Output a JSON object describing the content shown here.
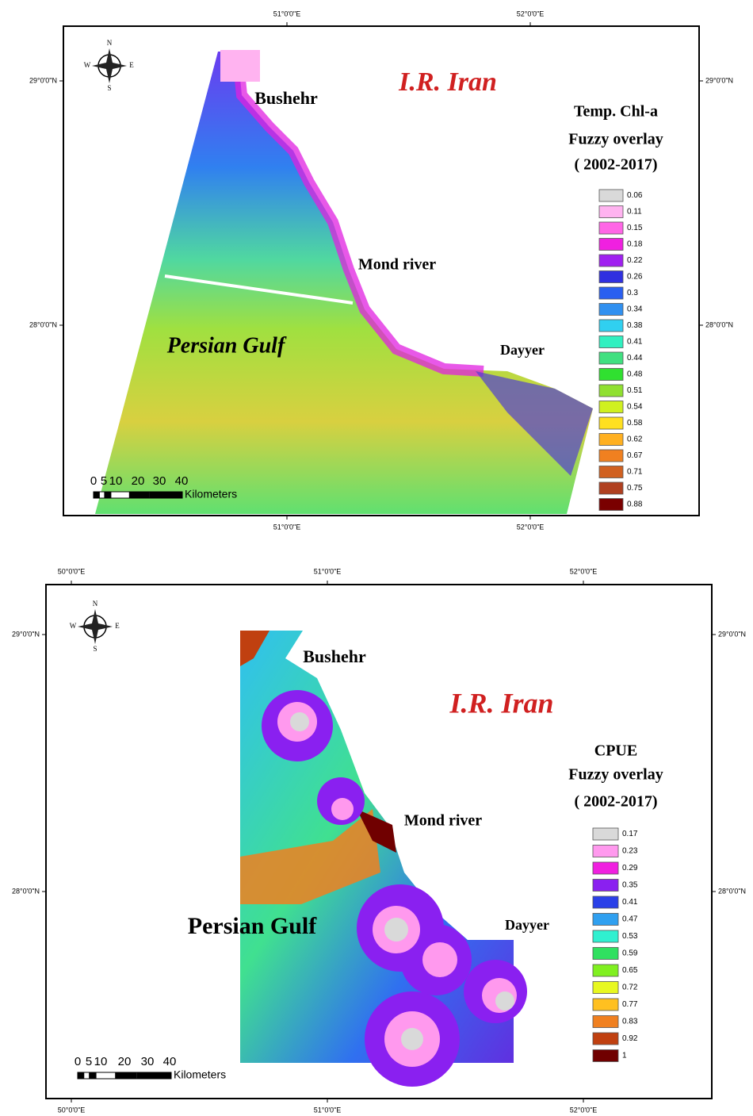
{
  "panels": [
    {
      "top_axis": [
        "51°0'0\"E",
        "52°0'0\"E"
      ],
      "bottom_axis": [
        "51°0'0\"E",
        "52°0'0\"E"
      ],
      "left_axis": [
        "29°0'0\"N",
        "28°0'0\"N"
      ],
      "right_axis": [
        "29°0'0\"N",
        "28°0'0\"N"
      ],
      "compass": {
        "n": "N",
        "s": "S",
        "e": "E",
        "w": "W"
      },
      "places": {
        "country": "I.R. Iran",
        "city": "Bushehr",
        "river": "Mond river",
        "town": "Dayyer",
        "sea": "Persian Gulf"
      },
      "legend": {
        "title": [
          "Temp. Chl-a",
          "Fuzzy overlay",
          "( 2002-2017)"
        ],
        "items": [
          {
            "label": "0.06",
            "color": "#d9d9d9"
          },
          {
            "label": "0.11",
            "color": "#ffb3f0"
          },
          {
            "label": "0.15",
            "color": "#ff66e6"
          },
          {
            "label": "0.18",
            "color": "#f020e0"
          },
          {
            "label": "0.22",
            "color": "#a020f0"
          },
          {
            "label": "0.26",
            "color": "#3030e0"
          },
          {
            "label": "0.3",
            "color": "#2a5ff0"
          },
          {
            "label": "0.34",
            "color": "#3090f0"
          },
          {
            "label": "0.38",
            "color": "#30d0f0"
          },
          {
            "label": "0.41",
            "color": "#30f0c0"
          },
          {
            "label": "0.44",
            "color": "#40e080"
          },
          {
            "label": "0.48",
            "color": "#30e030"
          },
          {
            "label": "0.51",
            "color": "#90e030"
          },
          {
            "label": "0.54",
            "color": "#d0f020"
          },
          {
            "label": "0.58",
            "color": "#ffe020"
          },
          {
            "label": "0.62",
            "color": "#ffb020"
          },
          {
            "label": "0.67",
            "color": "#f08020"
          },
          {
            "label": "0.71",
            "color": "#d06020"
          },
          {
            "label": "0.75",
            "color": "#b04020"
          },
          {
            "label": "0.88",
            "color": "#7a0000"
          }
        ]
      },
      "scale": {
        "ticks": [
          "0",
          "5",
          "10",
          "20",
          "30",
          "40"
        ],
        "unit": "Kilometers"
      }
    },
    {
      "top_axis": [
        "50°0'0\"E",
        "51°0'0\"E",
        "52°0'0\"E"
      ],
      "bottom_axis": [
        "50°0'0\"E",
        "51°0'0\"E",
        "52°0'0\"E"
      ],
      "left_axis": [
        "29°0'0\"N",
        "28°0'0\"N"
      ],
      "right_axis": [
        "29°0'0\"N",
        "28°0'0\"N"
      ],
      "compass": {
        "n": "N",
        "s": "S",
        "e": "E",
        "w": "W"
      },
      "places": {
        "country": "I.R. Iran",
        "city": "Bushehr",
        "river": "Mond river",
        "town": "Dayyer",
        "sea": "Persian Gulf"
      },
      "legend": {
        "title": [
          "CPUE",
          "Fuzzy overlay",
          "( 2002-2017)"
        ],
        "items": [
          {
            "label": "0.17",
            "color": "#d9d9d9"
          },
          {
            "label": "0.23",
            "color": "#ff99ee"
          },
          {
            "label": "0.29",
            "color": "#f020e0"
          },
          {
            "label": "0.35",
            "color": "#8a20f0"
          },
          {
            "label": "0.41",
            "color": "#2a40e8"
          },
          {
            "label": "0.47",
            "color": "#30a0f0"
          },
          {
            "label": "0.53",
            "color": "#30f0d0"
          },
          {
            "label": "0.59",
            "color": "#30e060"
          },
          {
            "label": "0.65",
            "color": "#80f020"
          },
          {
            "label": "0.72",
            "color": "#e8f820"
          },
          {
            "label": "0.77",
            "color": "#ffc020"
          },
          {
            "label": "0.83",
            "color": "#f08020"
          },
          {
            "label": "0.92",
            "color": "#c04010"
          },
          {
            "label": "1",
            "color": "#700000"
          }
        ]
      },
      "scale": {
        "ticks": [
          "0",
          "5",
          "10",
          "20",
          "30",
          "40"
        ],
        "unit": "Kilometers"
      }
    }
  ]
}
